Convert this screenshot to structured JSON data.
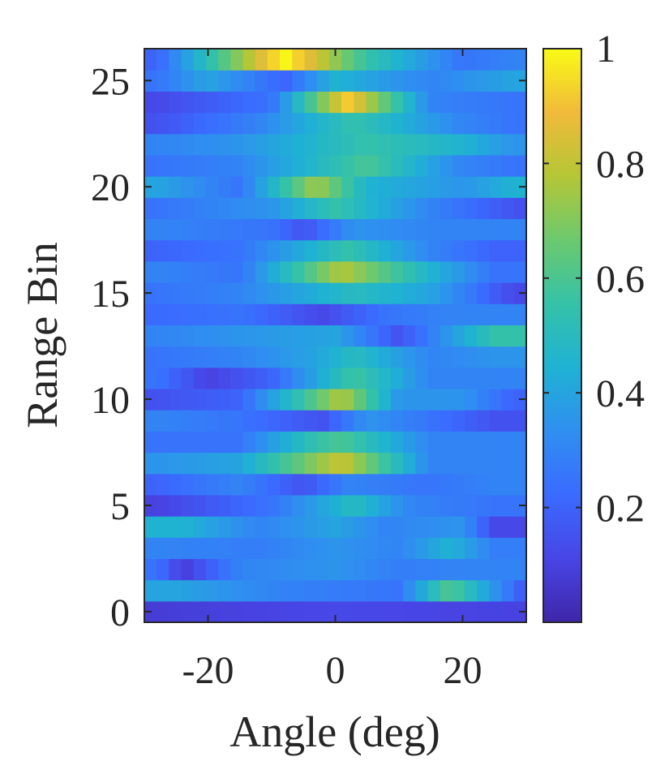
{
  "chart_data": {
    "type": "heatmap",
    "title": "",
    "xlabel": "Angle (deg)",
    "ylabel": "Range Bin",
    "xlim": [
      -30,
      30
    ],
    "ylim": [
      -0.5,
      26.5
    ],
    "x_ticks": [
      -20,
      0,
      20
    ],
    "x_tick_labels": [
      "-20",
      "0",
      "20"
    ],
    "y_ticks": [
      0,
      5,
      10,
      15,
      20,
      25
    ],
    "y_tick_labels": [
      "0",
      "5",
      "10",
      "15",
      "20",
      "25"
    ],
    "angle_bins": 31,
    "range_bins": 27,
    "colormap": "parula",
    "colormap_stops": [
      "#3e26a8",
      "#4845e6",
      "#3a6bff",
      "#2f8ff0",
      "#1fb2d3",
      "#35c2a8",
      "#6cc96e",
      "#b5c636",
      "#f1ba3a",
      "#f9fb15"
    ],
    "colorbar": {
      "range": [
        0,
        1
      ],
      "ticks": [
        0.2,
        0.4,
        0.6,
        0.8,
        1
      ],
      "tick_labels": [
        "0.2",
        "0.4",
        "0.6",
        "0.8",
        "1"
      ]
    },
    "rows": [
      {
        "bin": 0,
        "peaks": [
          [
            -30,
            0.08
          ],
          [
            0,
            0.12
          ],
          [
            30,
            0.1
          ]
        ]
      },
      {
        "bin": 1,
        "peaks": [
          [
            -25,
            0.4
          ],
          [
            -10,
            0.3
          ],
          [
            10,
            0.25
          ],
          [
            18,
            0.62
          ],
          [
            25,
            0.35
          ],
          [
            30,
            0.15
          ]
        ]
      },
      {
        "bin": 2,
        "peaks": [
          [
            -28,
            0.25
          ],
          [
            -24,
            0.08
          ],
          [
            -15,
            0.3
          ],
          [
            0,
            0.35
          ],
          [
            10,
            0.28
          ],
          [
            20,
            0.3
          ]
        ]
      },
      {
        "bin": 3,
        "peaks": [
          [
            -28,
            0.3
          ],
          [
            -12,
            0.28
          ],
          [
            0,
            0.35
          ],
          [
            10,
            0.3
          ],
          [
            18,
            0.45
          ],
          [
            25,
            0.28
          ]
        ]
      },
      {
        "bin": 4,
        "peaks": [
          [
            -24,
            0.45
          ],
          [
            -12,
            0.3
          ],
          [
            0,
            0.4
          ],
          [
            8,
            0.3
          ],
          [
            20,
            0.35
          ],
          [
            25,
            0.12
          ]
        ]
      },
      {
        "bin": 5,
        "peaks": [
          [
            -28,
            0.1
          ],
          [
            -10,
            0.25
          ],
          [
            3,
            0.5
          ],
          [
            12,
            0.3
          ],
          [
            25,
            0.25
          ]
        ]
      },
      {
        "bin": 6,
        "peaks": [
          [
            -28,
            0.2
          ],
          [
            -15,
            0.3
          ],
          [
            -5,
            0.15
          ],
          [
            2,
            0.3
          ],
          [
            15,
            0.25
          ],
          [
            25,
            0.3
          ]
        ]
      },
      {
        "bin": 7,
        "peaks": [
          [
            -28,
            0.35
          ],
          [
            -15,
            0.4
          ],
          [
            1,
            0.82
          ],
          [
            15,
            0.3
          ],
          [
            25,
            0.3
          ]
        ]
      },
      {
        "bin": 8,
        "peaks": [
          [
            -28,
            0.25
          ],
          [
            -15,
            0.25
          ],
          [
            -3,
            0.55
          ],
          [
            1,
            0.6
          ],
          [
            15,
            0.3
          ],
          [
            25,
            0.3
          ]
        ]
      },
      {
        "bin": 9,
        "peaks": [
          [
            -28,
            0.3
          ],
          [
            -15,
            0.25
          ],
          [
            -2,
            0.15
          ],
          [
            5,
            0.35
          ],
          [
            15,
            0.25
          ],
          [
            25,
            0.15
          ]
        ]
      },
      {
        "bin": 10,
        "peaks": [
          [
            -28,
            0.15
          ],
          [
            -15,
            0.2
          ],
          [
            1,
            0.78
          ],
          [
            10,
            0.35
          ],
          [
            20,
            0.35
          ],
          [
            28,
            0.2
          ]
        ]
      },
      {
        "bin": 11,
        "peaks": [
          [
            -28,
            0.25
          ],
          [
            -20,
            0.1
          ],
          [
            -10,
            0.2
          ],
          [
            3,
            0.58
          ],
          [
            15,
            0.3
          ],
          [
            25,
            0.3
          ]
        ]
      },
      {
        "bin": 12,
        "peaks": [
          [
            -28,
            0.25
          ],
          [
            -15,
            0.3
          ],
          [
            -3,
            0.4
          ],
          [
            3,
            0.5
          ],
          [
            15,
            0.3
          ],
          [
            25,
            0.35
          ]
        ]
      },
      {
        "bin": 13,
        "peaks": [
          [
            -28,
            0.3
          ],
          [
            -15,
            0.35
          ],
          [
            0,
            0.4
          ],
          [
            10,
            0.15
          ],
          [
            25,
            0.55
          ]
        ]
      },
      {
        "bin": 14,
        "peaks": [
          [
            -28,
            0.22
          ],
          [
            -15,
            0.25
          ],
          [
            -2,
            0.12
          ],
          [
            8,
            0.25
          ],
          [
            18,
            0.3
          ],
          [
            28,
            0.3
          ]
        ]
      },
      {
        "bin": 15,
        "peaks": [
          [
            -28,
            0.25
          ],
          [
            -15,
            0.3
          ],
          [
            3,
            0.5
          ],
          [
            15,
            0.4
          ],
          [
            28,
            0.12
          ]
        ]
      },
      {
        "bin": 16,
        "peaks": [
          [
            -28,
            0.3
          ],
          [
            -15,
            0.25
          ],
          [
            1,
            0.78
          ],
          [
            15,
            0.45
          ],
          [
            25,
            0.25
          ]
        ]
      },
      {
        "bin": 17,
        "peaks": [
          [
            -28,
            0.2
          ],
          [
            -15,
            0.25
          ],
          [
            2,
            0.55
          ],
          [
            15,
            0.3
          ],
          [
            25,
            0.2
          ]
        ]
      },
      {
        "bin": 18,
        "peaks": [
          [
            -28,
            0.3
          ],
          [
            -10,
            0.25
          ],
          [
            -5,
            0.15
          ],
          [
            3,
            0.35
          ],
          [
            15,
            0.3
          ],
          [
            28,
            0.3
          ]
        ]
      },
      {
        "bin": 19,
        "peaks": [
          [
            -28,
            0.25
          ],
          [
            -10,
            0.35
          ],
          [
            0,
            0.55
          ],
          [
            15,
            0.3
          ],
          [
            28,
            0.15
          ]
        ]
      },
      {
        "bin": 20,
        "peaks": [
          [
            -28,
            0.4
          ],
          [
            -15,
            0.25
          ],
          [
            -3,
            0.75
          ],
          [
            5,
            0.45
          ],
          [
            20,
            0.35
          ],
          [
            28,
            0.45
          ]
        ]
      },
      {
        "bin": 21,
        "peaks": [
          [
            -28,
            0.25
          ],
          [
            -15,
            0.3
          ],
          [
            5,
            0.6
          ],
          [
            20,
            0.3
          ],
          [
            28,
            0.25
          ]
        ]
      },
      {
        "bin": 22,
        "peaks": [
          [
            -28,
            0.3
          ],
          [
            -15,
            0.35
          ],
          [
            5,
            0.55
          ],
          [
            20,
            0.45
          ],
          [
            28,
            0.35
          ]
        ]
      },
      {
        "bin": 23,
        "peaks": [
          [
            -28,
            0.15
          ],
          [
            -12,
            0.3
          ],
          [
            3,
            0.55
          ],
          [
            20,
            0.3
          ],
          [
            28,
            0.25
          ]
        ]
      },
      {
        "bin": 24,
        "peaks": [
          [
            -28,
            0.12
          ],
          [
            -10,
            0.25
          ],
          [
            2,
            0.92
          ],
          [
            15,
            0.3
          ],
          [
            28,
            0.25
          ]
        ]
      },
      {
        "bin": 25,
        "peaks": [
          [
            -28,
            0.25
          ],
          [
            -20,
            0.4
          ],
          [
            -8,
            0.2
          ],
          [
            0,
            0.45
          ],
          [
            15,
            0.3
          ],
          [
            28,
            0.4
          ]
        ]
      },
      {
        "bin": 26,
        "peaks": [
          [
            -28,
            0.2
          ],
          [
            -8,
            1.0
          ],
          [
            5,
            0.55
          ],
          [
            20,
            0.25
          ],
          [
            28,
            0.3
          ]
        ]
      }
    ]
  }
}
